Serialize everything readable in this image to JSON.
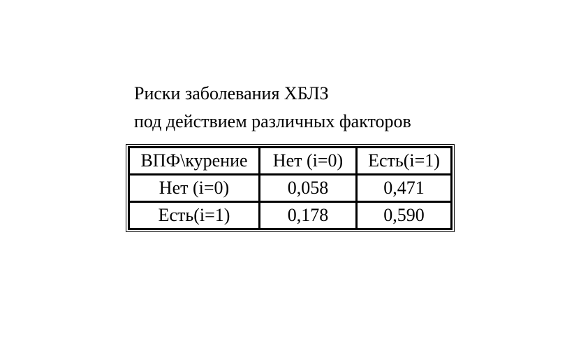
{
  "page": {
    "background": "#ffffff",
    "text_color": "#000000",
    "border_color": "#000000"
  },
  "title": {
    "line1": "Риски заболевания ХБЛЗ",
    "line2": "под действием различных факторов"
  },
  "table": {
    "headers": [
      "ВПФ\\курение",
      "Нет (i=0)",
      "Есть(i=1)"
    ],
    "rows": [
      {
        "label": "Нет (i=0)",
        "values": [
          "0,058",
          "0,471"
        ]
      },
      {
        "label": "Есть(i=1)",
        "values": [
          "0,178",
          "0,590"
        ]
      }
    ]
  },
  "chart_data": {
    "type": "table",
    "title": "Риски заболевания ХБЛЗ под действием различных факторов",
    "columns": [
      "ВПФ\\курение",
      "Нет (i=0)",
      "Есть(i=1)"
    ],
    "rows": [
      [
        "Нет (i=0)",
        0.058,
        0.471
      ],
      [
        "Есть(i=1)",
        0.178,
        0.59
      ]
    ],
    "decimal_separator": ","
  }
}
